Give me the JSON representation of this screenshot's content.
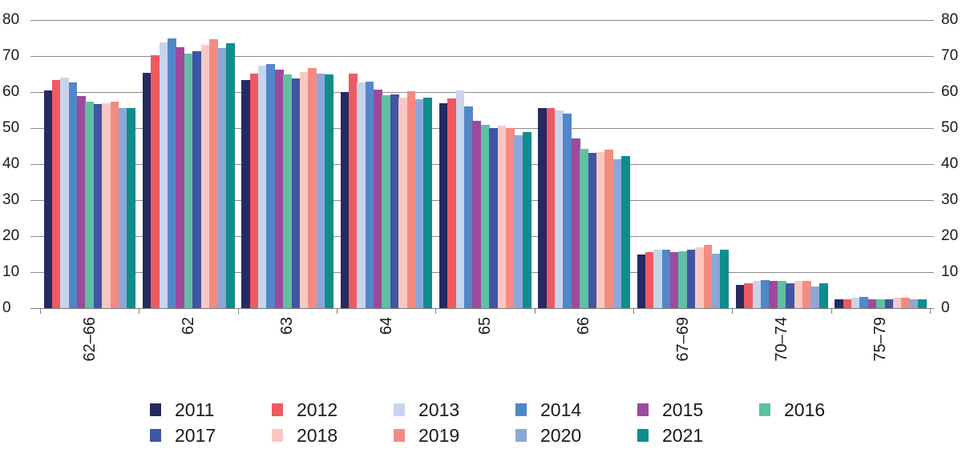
{
  "figure": {
    "background": "#ffffff",
    "text_color": "#1a1a1a",
    "gridline_color": "#8a8a8a"
  },
  "chart_data": {
    "type": "bar",
    "title": "",
    "xlabel": "",
    "ylabel": "",
    "grid": true,
    "categories": [
      "62–66",
      "62",
      "63",
      "64",
      "65",
      "66",
      "67–69",
      "70–74",
      "75–79"
    ],
    "series": [
      {
        "name": "2011",
        "color": "#262A63",
        "values": [
          60.5,
          65.3,
          63.3,
          60.1,
          57.0,
          55.6,
          15.0,
          6.4,
          2.4
        ]
      },
      {
        "name": "2012",
        "color": "#EE5A60",
        "values": [
          63.4,
          70.2,
          65.2,
          65.2,
          58.2,
          55.6,
          15.6,
          6.9,
          2.5
        ]
      },
      {
        "name": "2013",
        "color": "#C8D4EC",
        "values": [
          64.1,
          73.7,
          67.3,
          62.6,
          60.5,
          55.0,
          16.2,
          7.6,
          3.0
        ]
      },
      {
        "name": "2014",
        "color": "#5187C8",
        "values": [
          62.7,
          74.8,
          67.8,
          62.8,
          56.1,
          53.9,
          16.3,
          7.7,
          3.1
        ]
      },
      {
        "name": "2015",
        "color": "#9D4A9E",
        "values": [
          58.9,
          72.4,
          66.2,
          60.6,
          52.1,
          47.2,
          15.6,
          7.6,
          2.4
        ]
      },
      {
        "name": "2016",
        "color": "#5FC0A3",
        "values": [
          57.3,
          70.6,
          65.0,
          59.2,
          50.9,
          44.2,
          15.7,
          7.5,
          2.4
        ]
      },
      {
        "name": "2017",
        "color": "#4155A5",
        "values": [
          56.7,
          71.3,
          63.8,
          59.4,
          49.9,
          43.2,
          16.3,
          6.9,
          2.5
        ]
      },
      {
        "name": "2018",
        "color": "#F9C8C3",
        "values": [
          56.8,
          73.1,
          65.6,
          58.4,
          50.6,
          43.3,
          16.9,
          7.5,
          2.9
        ]
      },
      {
        "name": "2019",
        "color": "#F48B80",
        "values": [
          57.3,
          74.6,
          66.7,
          60.2,
          50.0,
          43.9,
          17.5,
          7.6,
          3.0
        ]
      },
      {
        "name": "2020",
        "color": "#8BA7DA",
        "values": [
          55.5,
          72.2,
          65.2,
          57.9,
          48.1,
          41.3,
          15.1,
          5.9,
          2.5
        ]
      },
      {
        "name": "2021",
        "color": "#0F8D8D",
        "values": [
          55.6,
          73.6,
          64.8,
          58.4,
          48.8,
          42.2,
          16.3,
          6.9,
          2.4
        ]
      }
    ],
    "y_axis": {
      "min": 0,
      "max": 80,
      "step": 10,
      "ticks": [
        0,
        10,
        20,
        30,
        40,
        50,
        60,
        70,
        80
      ],
      "tick_labels": [
        "0",
        "10",
        "20",
        "30",
        "40",
        "50",
        "60",
        "70",
        "80"
      ],
      "labels_on_left": true,
      "labels_on_right": true
    },
    "legend": {
      "position": "bottom",
      "rows": [
        [
          "2011",
          "2012",
          "2013",
          "2014",
          "2015",
          "2016"
        ],
        [
          "2017",
          "2018",
          "2019",
          "2020",
          "2021"
        ]
      ]
    }
  }
}
